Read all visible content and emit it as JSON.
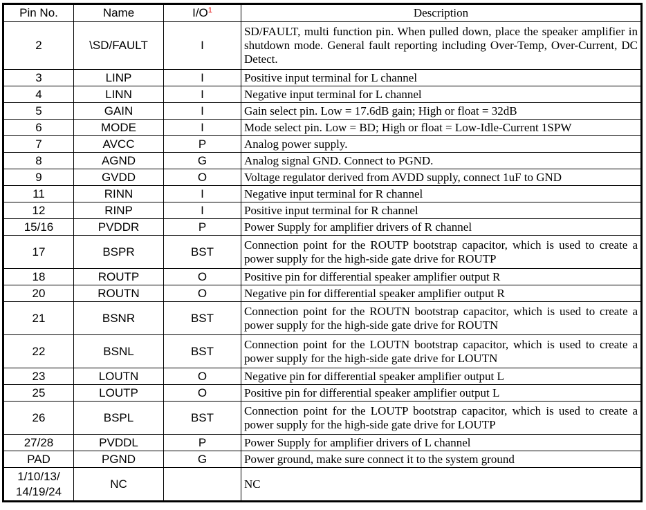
{
  "headers": {
    "pin": "Pin No.",
    "name": "Name",
    "io": "I/O",
    "io_footnote": "1",
    "description": "Description"
  },
  "footnote_color": "#e00000",
  "rows": [
    {
      "pin": "2",
      "name": "\\SD/FAULT",
      "io": "I",
      "desc": "SD/FAULT, multi function pin. When pulled down, place the speaker amplifier in shutdown mode. General fault reporting including Over-Temp, Over-Current, DC Detect.",
      "lines": 3
    },
    {
      "pin": "3",
      "name": "LINP",
      "io": "I",
      "desc": "Positive input terminal for L channel",
      "lines": 1
    },
    {
      "pin": "4",
      "name": "LINN",
      "io": "I",
      "desc": "Negative input terminal for L channel",
      "lines": 1
    },
    {
      "pin": "5",
      "name": "GAIN",
      "io": "I",
      "desc": "Gain select pin. Low = 17.6dB gain; High or float = 32dB",
      "lines": 1
    },
    {
      "pin": "6",
      "name": "MODE",
      "io": "I",
      "desc": "Mode select pin. Low = BD; High or float = Low-Idle-Current 1SPW",
      "lines": 1
    },
    {
      "pin": "7",
      "name": "AVCC",
      "io": "P",
      "desc": "Analog power supply.",
      "lines": 1
    },
    {
      "pin": "8",
      "name": "AGND",
      "io": "G",
      "desc": "Analog signal GND. Connect to PGND.",
      "lines": 1
    },
    {
      "pin": "9",
      "name": "GVDD",
      "io": "O",
      "desc": "Voltage regulator derived from AVDD supply, connect 1uF to GND",
      "lines": 1
    },
    {
      "pin": "11",
      "name": "RINN",
      "io": "I",
      "desc": "Negative input terminal for R channel",
      "lines": 1
    },
    {
      "pin": "12",
      "name": "RINP",
      "io": "I",
      "desc": "Positive input terminal for R channel",
      "lines": 1
    },
    {
      "pin": "15/16",
      "name": "PVDDR",
      "io": "P",
      "desc": "Power Supply for amplifier drivers of R channel",
      "lines": 1
    },
    {
      "pin": "17",
      "name": "BSPR",
      "io": "BST",
      "desc": "Connection point for the ROUTP bootstrap capacitor, which is used to create a power supply for the high-side gate drive for ROUTP",
      "lines": 2
    },
    {
      "pin": "18",
      "name": "ROUTP",
      "io": "O",
      "desc": "Positive pin for differential speaker amplifier output R",
      "lines": 1
    },
    {
      "pin": "20",
      "name": "ROUTN",
      "io": "O",
      "desc": "Negative pin for differential speaker amplifier output R",
      "lines": 1
    },
    {
      "pin": "21",
      "name": "BSNR",
      "io": "BST",
      "desc": "Connection point for the ROUTN bootstrap capacitor, which is used to create a power supply for the high-side gate drive for ROUTN",
      "lines": 2
    },
    {
      "pin": "22",
      "name": "BSNL",
      "io": "BST",
      "desc": "Connection point for the LOUTN bootstrap capacitor, which is used to create a power supply for the high-side gate drive for LOUTN",
      "lines": 2
    },
    {
      "pin": "23",
      "name": "LOUTN",
      "io": "O",
      "desc": "Negative pin for differential speaker amplifier output L",
      "lines": 1
    },
    {
      "pin": "25",
      "name": "LOUTP",
      "io": "O",
      "desc": "Positive pin for differential speaker amplifier output L",
      "lines": 1
    },
    {
      "pin": "26",
      "name": "BSPL",
      "io": "BST",
      "desc": "Connection point for the LOUTP bootstrap capacitor, which is used to create a power supply for the high-side gate drive for LOUTP",
      "lines": 2
    },
    {
      "pin": "27/28",
      "name": "PVDDL",
      "io": "P",
      "desc": "Power Supply for amplifier drivers of L channel",
      "lines": 1
    },
    {
      "pin": "PAD",
      "name": "PGND",
      "io": "G",
      "desc": "Power ground, make sure connect it to the system ground",
      "lines": 1
    },
    {
      "pin": "1/10/13/ 14/19/24",
      "name": "NC",
      "io": "",
      "desc": "NC",
      "lines": 2
    }
  ]
}
